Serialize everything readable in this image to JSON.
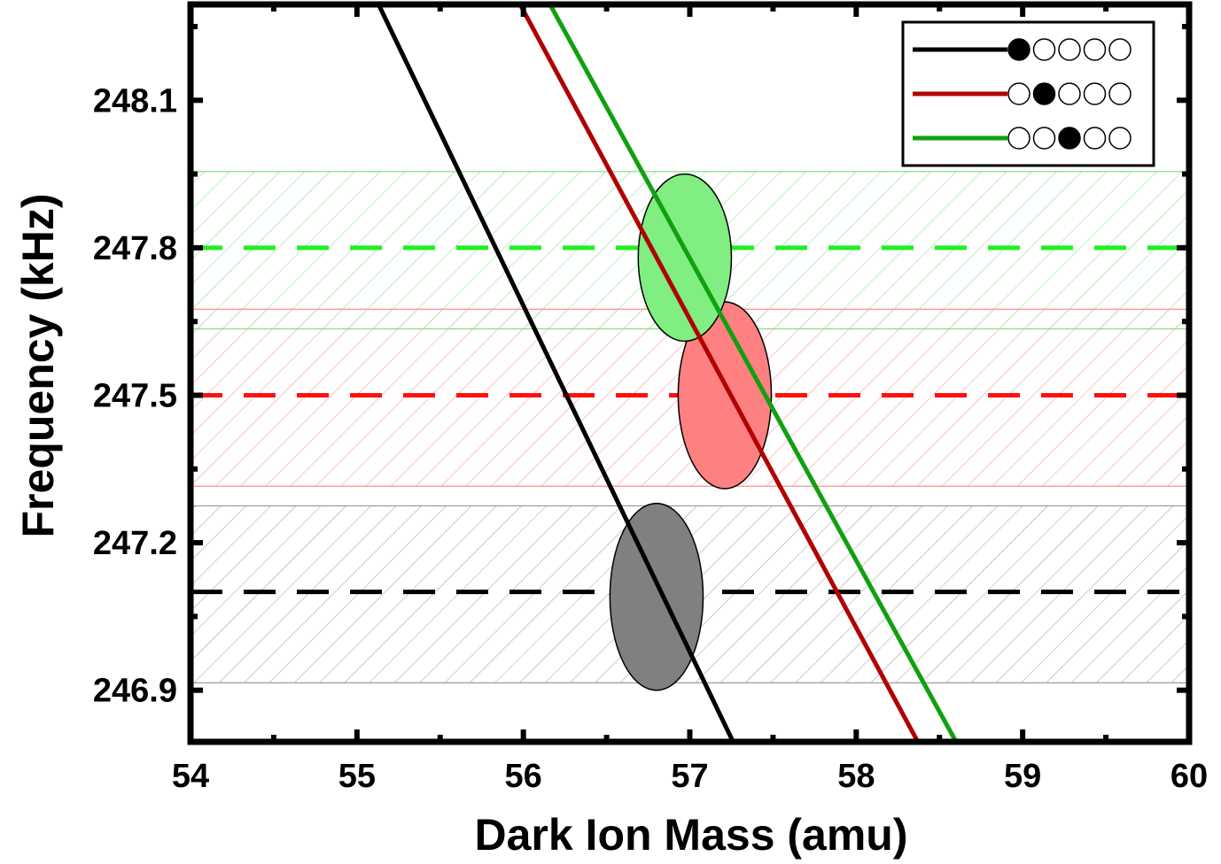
{
  "chart_data": {
    "type": "line",
    "xlabel": "Dark Ion Mass (amu)",
    "ylabel": "Frequency (kHz)",
    "xlim": [
      54,
      60
    ],
    "ylim": [
      246.795,
      248.295
    ],
    "x_ticks": [
      "54",
      "55",
      "56",
      "57",
      "58",
      "59",
      "60"
    ],
    "y_ticks": [
      "246.9",
      "247.2",
      "247.5",
      "247.8",
      "248.1"
    ],
    "grid": false,
    "legend_position": "top-right",
    "series": [
      {
        "color": "#000000",
        "ion_position": 1,
        "line": [
          [
            55.13,
            248.295
          ],
          [
            57.26,
            246.795
          ]
        ],
        "measured_frequency": 247.1,
        "band": [
          246.915,
          247.275
        ],
        "ellipse": {
          "mass": 56.8,
          "freq": 247.09,
          "mass_halfwidth": 0.28,
          "freq_halfwidth": 0.19
        },
        "band_color": "#9a9a9a",
        "ellipse_color": "#808080"
      },
      {
        "color": "#b00000",
        "ion_position": 2,
        "line": [
          [
            55.98,
            248.295
          ],
          [
            58.37,
            246.795
          ]
        ],
        "measured_frequency": 247.5,
        "band": [
          247.315,
          247.675
        ],
        "ellipse": {
          "mass": 57.21,
          "freq": 247.5,
          "mass_halfwidth": 0.28,
          "freq_halfwidth": 0.19
        },
        "band_color": "#ff8888",
        "ellipse_color": "#ff8080",
        "dash_color": "#ff1010"
      },
      {
        "color": "#10a010",
        "ion_position": 3,
        "line": [
          [
            56.16,
            248.295
          ],
          [
            58.6,
            246.795
          ]
        ],
        "measured_frequency": 247.8,
        "band": [
          247.635,
          247.955
        ],
        "ellipse": {
          "mass": 56.97,
          "freq": 247.78,
          "mass_halfwidth": 0.28,
          "freq_halfwidth": 0.17
        },
        "band_color": "#80e080",
        "ellipse_color": "#80ee80",
        "dash_color": "#20ee20"
      }
    ]
  }
}
